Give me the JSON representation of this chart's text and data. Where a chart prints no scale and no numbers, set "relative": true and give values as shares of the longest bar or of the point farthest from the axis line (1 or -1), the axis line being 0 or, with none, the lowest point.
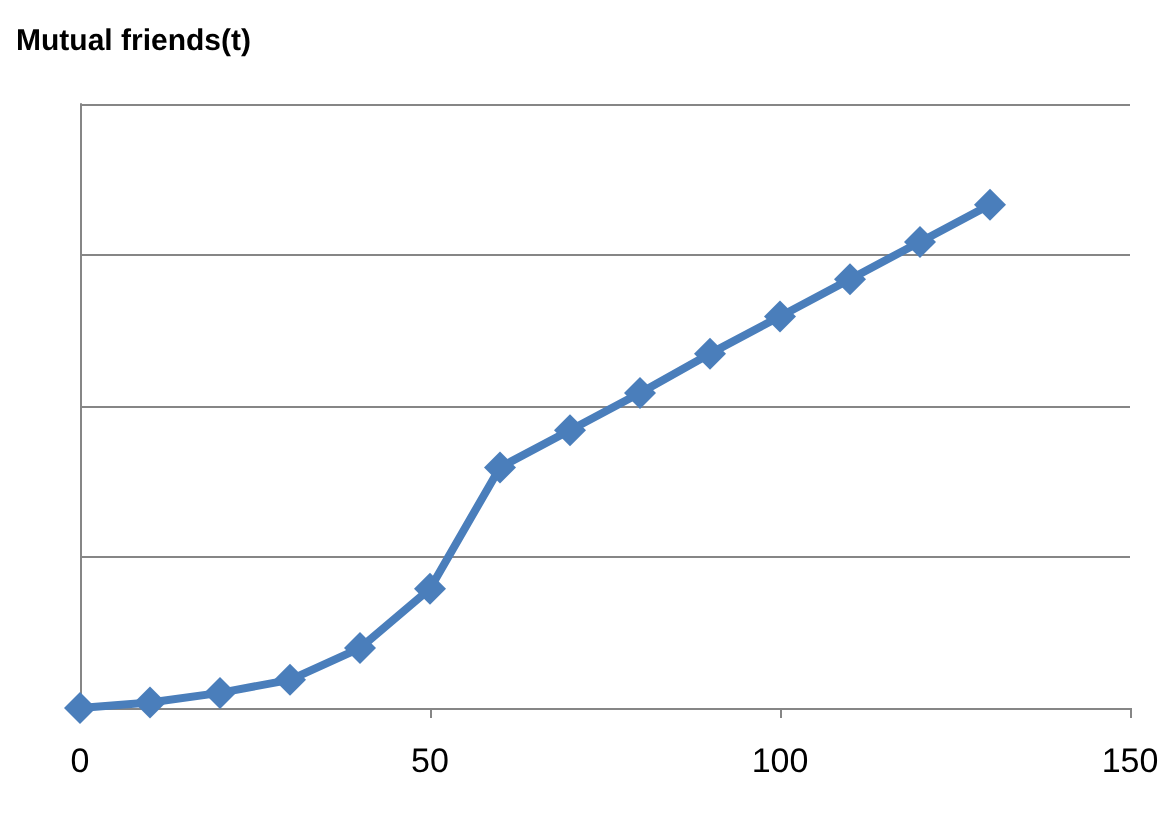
{
  "chart_data": {
    "type": "line",
    "title": "Mutual friends(t)",
    "relative": true,
    "x": [
      0,
      10,
      20,
      30,
      40,
      50,
      60,
      70,
      80,
      90,
      100,
      110,
      120,
      130
    ],
    "series": [
      {
        "color": "#4a7ebb",
        "values": [
          0,
          0.011,
          0.03,
          0.056,
          0.119,
          0.237,
          0.478,
          0.552,
          0.626,
          0.704,
          0.778,
          0.852,
          0.926,
          1
        ]
      }
    ],
    "xlim": [
      0,
      150
    ],
    "xticks": [
      0,
      50,
      100,
      150
    ],
    "grid": "y",
    "marker": "diamond",
    "line_style": "solid",
    "tick_labels": "x"
  }
}
